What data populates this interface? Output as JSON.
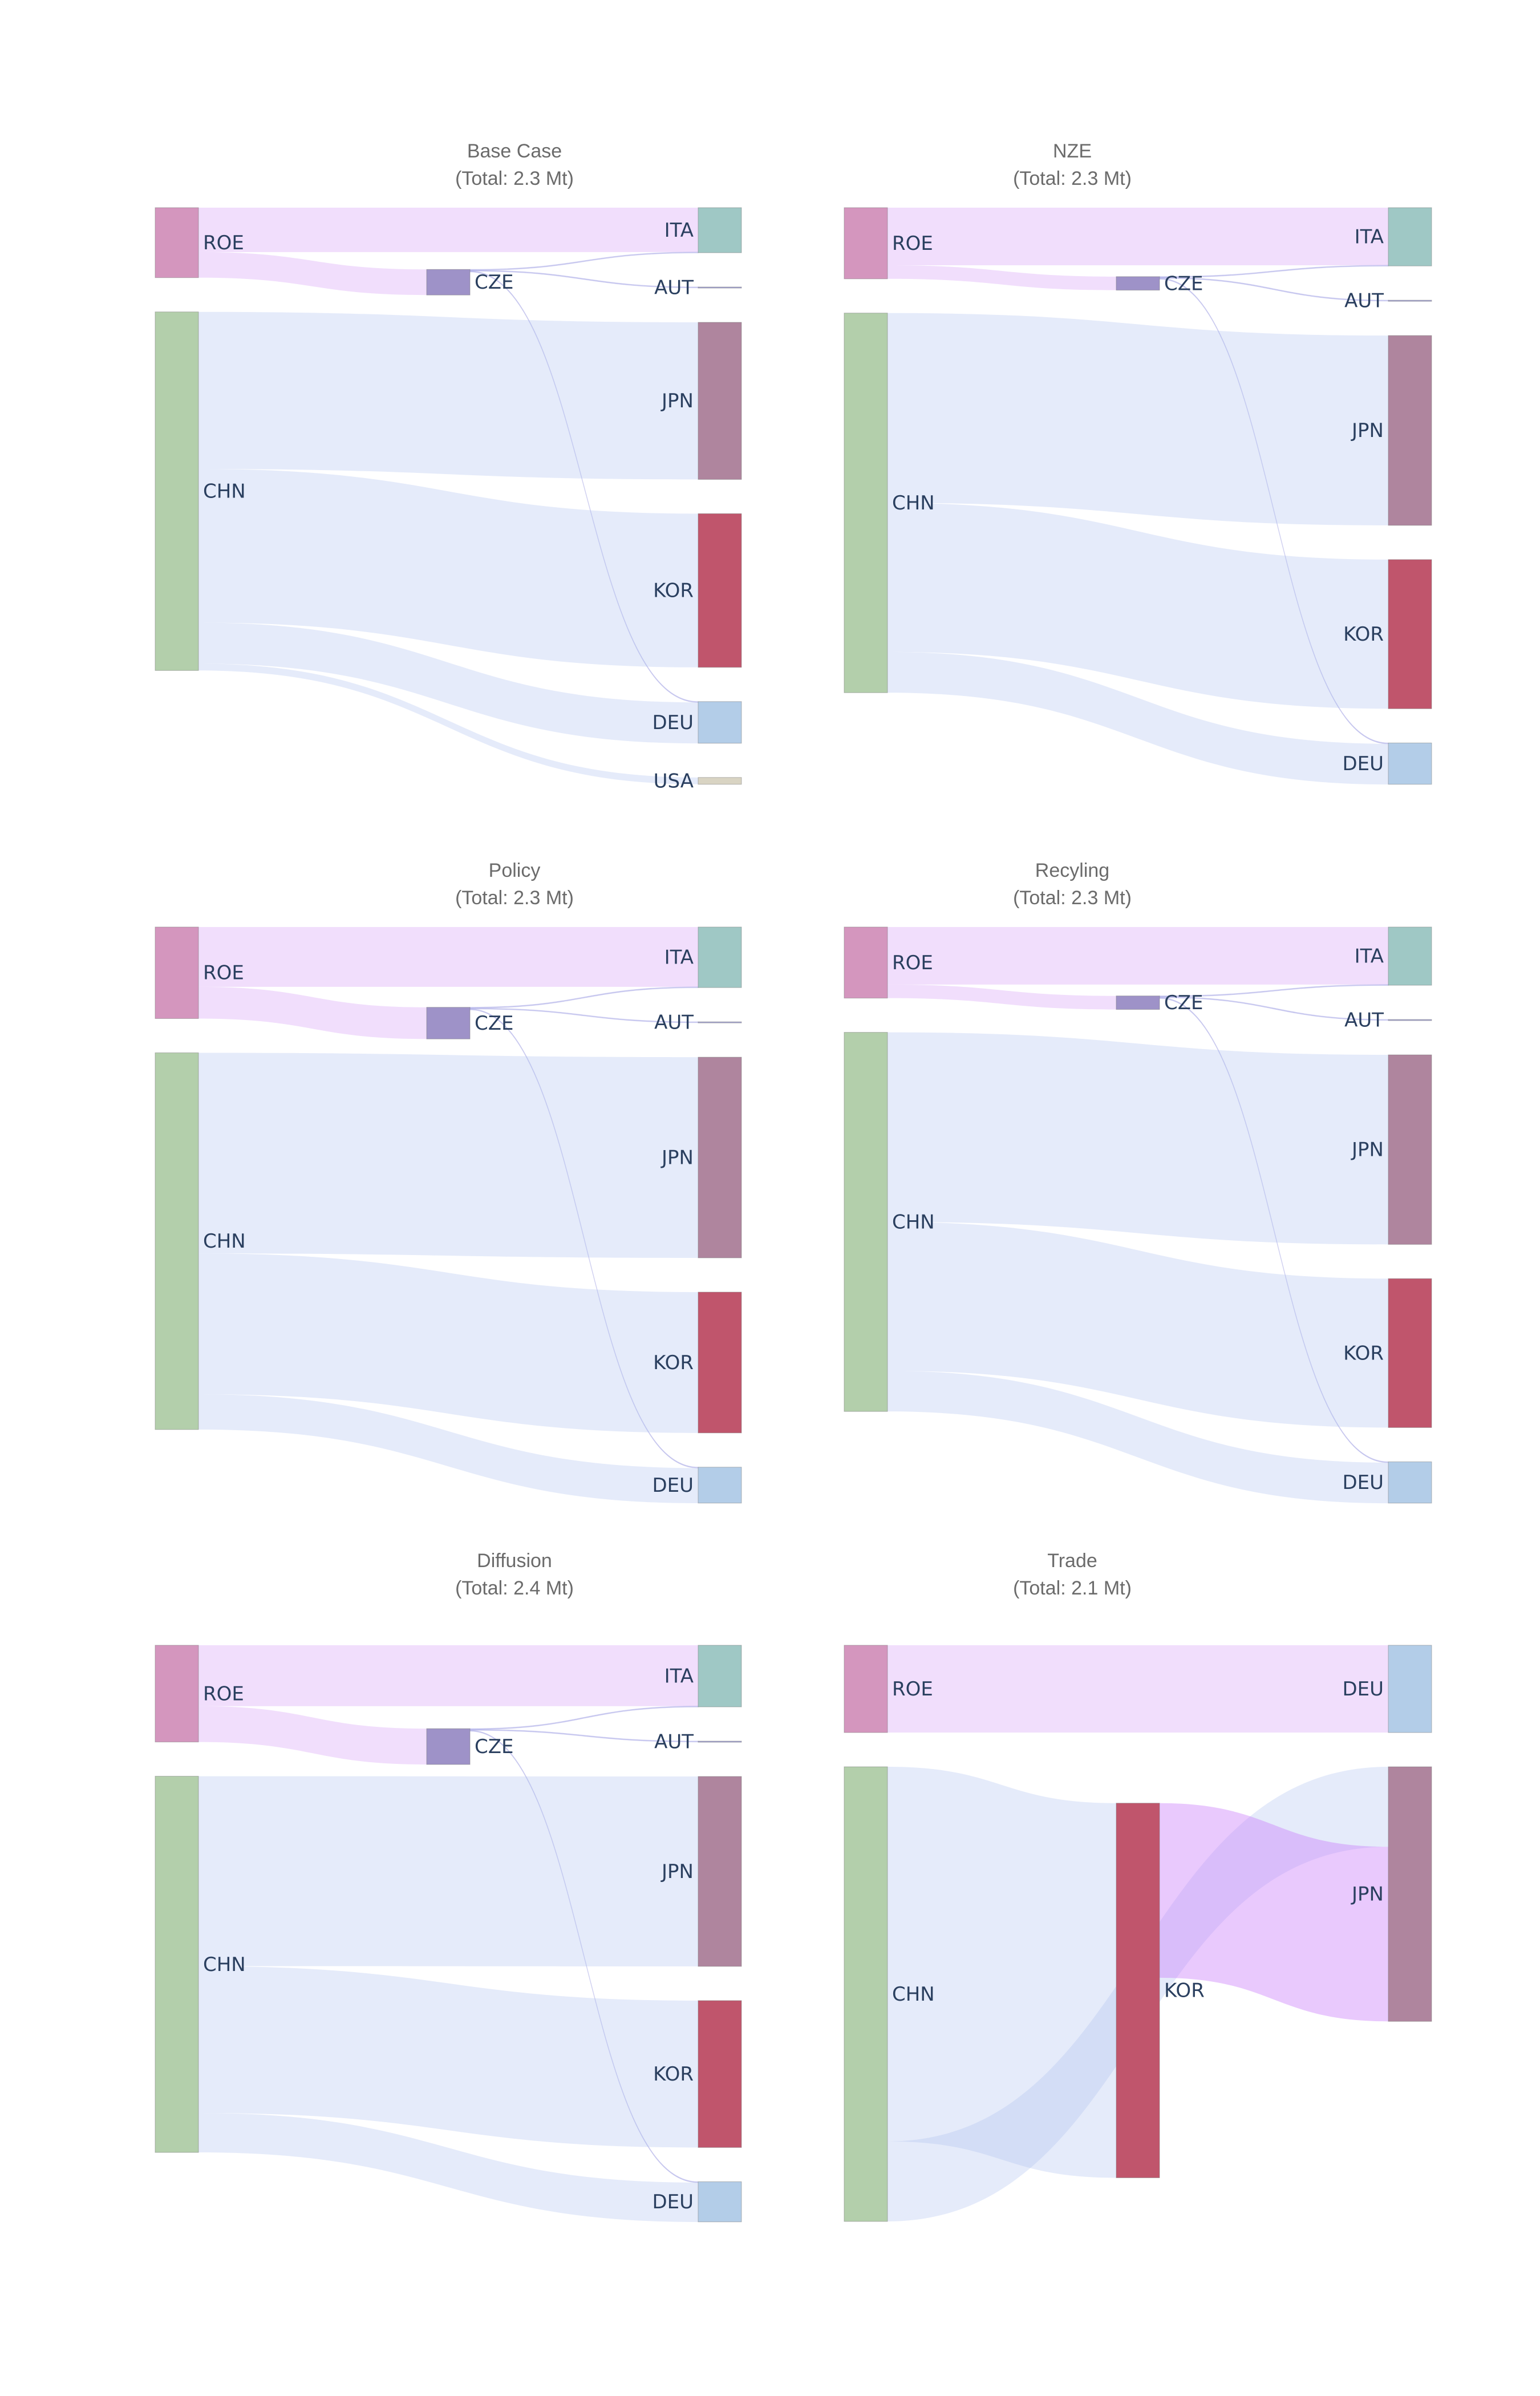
{
  "chart_data": [
    {
      "type": "sankey",
      "title": "Base Case",
      "subtitle": "(Total: 2.3 Mt)",
      "nodes": [
        {
          "id": "ROE",
          "label": "ROE",
          "color": "#d496be",
          "column": 0
        },
        {
          "id": "CHN",
          "label": "CHN",
          "color": "#b3cfab",
          "column": 0
        },
        {
          "id": "CZE",
          "label": "CZE",
          "color": "#9e92c8",
          "column": 1
        },
        {
          "id": "ITA",
          "label": "ITA",
          "color": "#9fc8c5",
          "column": 2
        },
        {
          "id": "AUT",
          "label": "AUT",
          "color": "#a6a6d6",
          "column": 2
        },
        {
          "id": "JPN",
          "label": "JPN",
          "color": "#af859e",
          "column": 2
        },
        {
          "id": "KOR",
          "label": "KOR",
          "color": "#c0556c",
          "column": 2
        },
        {
          "id": "DEU",
          "label": "DEU",
          "color": "#b3cde8",
          "column": 2
        },
        {
          "id": "USA",
          "label": "USA",
          "color": "#d9d4c3",
          "column": 2
        }
      ],
      "links": [
        {
          "source": "ROE",
          "target": "ITA",
          "value": 0.13
        },
        {
          "source": "ROE",
          "target": "CZE",
          "value": 0.075
        },
        {
          "source": "CZE",
          "target": "ITA",
          "value": 0.002
        },
        {
          "source": "CZE",
          "target": "AUT",
          "value": 0.002
        },
        {
          "source": "CZE",
          "target": "DEU",
          "value": 0.002
        },
        {
          "source": "CHN",
          "target": "JPN",
          "value": 0.46
        },
        {
          "source": "CHN",
          "target": "KOR",
          "value": 0.45
        },
        {
          "source": "CHN",
          "target": "DEU",
          "value": 0.12
        },
        {
          "source": "CHN",
          "target": "USA",
          "value": 0.02
        }
      ]
    },
    {
      "type": "sankey",
      "title": "NZE",
      "subtitle": "(Total: 2.3 Mt)",
      "nodes": [
        {
          "id": "ROE",
          "label": "ROE",
          "color": "#d496be",
          "column": 0
        },
        {
          "id": "CHN",
          "label": "CHN",
          "color": "#b3cfab",
          "column": 0
        },
        {
          "id": "CZE",
          "label": "CZE",
          "color": "#9e92c8",
          "column": 1
        },
        {
          "id": "ITA",
          "label": "ITA",
          "color": "#9fc8c5",
          "column": 2
        },
        {
          "id": "AUT",
          "label": "AUT",
          "color": "#a6a6d6",
          "column": 2
        },
        {
          "id": "JPN",
          "label": "JPN",
          "color": "#af859e",
          "column": 2
        },
        {
          "id": "KOR",
          "label": "KOR",
          "color": "#c0556c",
          "column": 2
        },
        {
          "id": "DEU",
          "label": "DEU",
          "color": "#b3cde8",
          "column": 2
        }
      ],
      "links": [
        {
          "source": "ROE",
          "target": "ITA",
          "value": 0.17
        },
        {
          "source": "ROE",
          "target": "CZE",
          "value": 0.04
        },
        {
          "source": "CZE",
          "target": "ITA",
          "value": 0.002
        },
        {
          "source": "CZE",
          "target": "AUT",
          "value": 0.002
        },
        {
          "source": "CZE",
          "target": "DEU",
          "value": 0.002
        },
        {
          "source": "CHN",
          "target": "JPN",
          "value": 0.56
        },
        {
          "source": "CHN",
          "target": "KOR",
          "value": 0.44
        },
        {
          "source": "CHN",
          "target": "DEU",
          "value": 0.12
        }
      ]
    },
    {
      "type": "sankey",
      "title": "Policy",
      "subtitle": "(Total: 2.3 Mt)",
      "nodes": [
        {
          "id": "ROE",
          "label": "ROE",
          "color": "#d496be",
          "column": 0
        },
        {
          "id": "CHN",
          "label": "CHN",
          "color": "#b3cfab",
          "column": 0
        },
        {
          "id": "CZE",
          "label": "CZE",
          "color": "#9e92c8",
          "column": 1
        },
        {
          "id": "ITA",
          "label": "ITA",
          "color": "#9fc8c5",
          "column": 2
        },
        {
          "id": "AUT",
          "label": "AUT",
          "color": "#a6a6d6",
          "column": 2
        },
        {
          "id": "JPN",
          "label": "JPN",
          "color": "#af859e",
          "column": 2
        },
        {
          "id": "KOR",
          "label": "KOR",
          "color": "#c0556c",
          "column": 2
        },
        {
          "id": "DEU",
          "label": "DEU",
          "color": "#b3cde8",
          "column": 2
        }
      ],
      "links": [
        {
          "source": "ROE",
          "target": "ITA",
          "value": 0.17
        },
        {
          "source": "ROE",
          "target": "CZE",
          "value": 0.09
        },
        {
          "source": "CZE",
          "target": "ITA",
          "value": 0.002
        },
        {
          "source": "CZE",
          "target": "AUT",
          "value": 0.002
        },
        {
          "source": "CZE",
          "target": "DEU",
          "value": 0.002
        },
        {
          "source": "CHN",
          "target": "JPN",
          "value": 0.57
        },
        {
          "source": "CHN",
          "target": "KOR",
          "value": 0.4
        },
        {
          "source": "CHN",
          "target": "DEU",
          "value": 0.1
        }
      ]
    },
    {
      "type": "sankey",
      "title": "Recyling",
      "subtitle": "(Total: 2.3 Mt)",
      "nodes": [
        {
          "id": "ROE",
          "label": "ROE",
          "color": "#d496be",
          "column": 0
        },
        {
          "id": "CHN",
          "label": "CHN",
          "color": "#b3cfab",
          "column": 0
        },
        {
          "id": "CZE",
          "label": "CZE",
          "color": "#9e92c8",
          "column": 1
        },
        {
          "id": "ITA",
          "label": "ITA",
          "color": "#9fc8c5",
          "column": 2
        },
        {
          "id": "AUT",
          "label": "AUT",
          "color": "#a6a6d6",
          "column": 2
        },
        {
          "id": "JPN",
          "label": "JPN",
          "color": "#af859e",
          "column": 2
        },
        {
          "id": "KOR",
          "label": "KOR",
          "color": "#c0556c",
          "column": 2
        },
        {
          "id": "DEU",
          "label": "DEU",
          "color": "#b3cde8",
          "column": 2
        }
      ],
      "links": [
        {
          "source": "ROE",
          "target": "ITA",
          "value": 0.17
        },
        {
          "source": "ROE",
          "target": "CZE",
          "value": 0.04
        },
        {
          "source": "CZE",
          "target": "ITA",
          "value": 0.002
        },
        {
          "source": "CZE",
          "target": "AUT",
          "value": 0.002
        },
        {
          "source": "CZE",
          "target": "DEU",
          "value": 0.002
        },
        {
          "source": "CHN",
          "target": "JPN",
          "value": 0.56
        },
        {
          "source": "CHN",
          "target": "KOR",
          "value": 0.44
        },
        {
          "source": "CHN",
          "target": "DEU",
          "value": 0.12
        }
      ]
    },
    {
      "type": "sankey",
      "title": "Diffusion",
      "subtitle": "(Total: 2.4 Mt)",
      "nodes": [
        {
          "id": "ROE",
          "label": "ROE",
          "color": "#d496be",
          "column": 0
        },
        {
          "id": "CHN",
          "label": "CHN",
          "color": "#b3cfab",
          "column": 0
        },
        {
          "id": "CZE",
          "label": "CZE",
          "color": "#9e92c8",
          "column": 1
        },
        {
          "id": "ITA",
          "label": "ITA",
          "color": "#9fc8c5",
          "column": 2
        },
        {
          "id": "AUT",
          "label": "AUT",
          "color": "#a6a6d6",
          "column": 2
        },
        {
          "id": "JPN",
          "label": "JPN",
          "color": "#af859e",
          "column": 2
        },
        {
          "id": "KOR",
          "label": "KOR",
          "color": "#c0556c",
          "column": 2
        },
        {
          "id": "DEU",
          "label": "DEU",
          "color": "#b3cde8",
          "column": 2
        }
      ],
      "links": [
        {
          "source": "ROE",
          "target": "ITA",
          "value": 0.17
        },
        {
          "source": "ROE",
          "target": "CZE",
          "value": 0.1
        },
        {
          "source": "CZE",
          "target": "ITA",
          "value": 0.002
        },
        {
          "source": "CZE",
          "target": "AUT",
          "value": 0.002
        },
        {
          "source": "CZE",
          "target": "DEU",
          "value": 0.002
        },
        {
          "source": "CHN",
          "target": "JPN",
          "value": 0.53
        },
        {
          "source": "CHN",
          "target": "KOR",
          "value": 0.41
        },
        {
          "source": "CHN",
          "target": "DEU",
          "value": 0.11
        }
      ]
    },
    {
      "type": "sankey",
      "title": "Trade",
      "subtitle": "(Total: 2.1 Mt)",
      "nodes": [
        {
          "id": "ROE",
          "label": "ROE",
          "color": "#d496be",
          "column": 0
        },
        {
          "id": "CHN",
          "label": "CHN",
          "color": "#b3cfab",
          "column": 0
        },
        {
          "id": "KOR",
          "label": "KOR",
          "color": "#c0556c",
          "column": 1
        },
        {
          "id": "DEU",
          "label": "DEU",
          "color": "#b3cde8",
          "column": 2
        },
        {
          "id": "JPN",
          "label": "JPN",
          "color": "#af859e",
          "column": 2
        }
      ],
      "links": [
        {
          "source": "ROE",
          "target": "DEU",
          "value": 0.24
        },
        {
          "source": "CHN",
          "target": "KOR",
          "value": 1.03
        },
        {
          "source": "CHN",
          "target": "JPN",
          "value": 0.22
        },
        {
          "source": "KOR",
          "target": "JPN",
          "value": 0.48
        }
      ]
    }
  ]
}
